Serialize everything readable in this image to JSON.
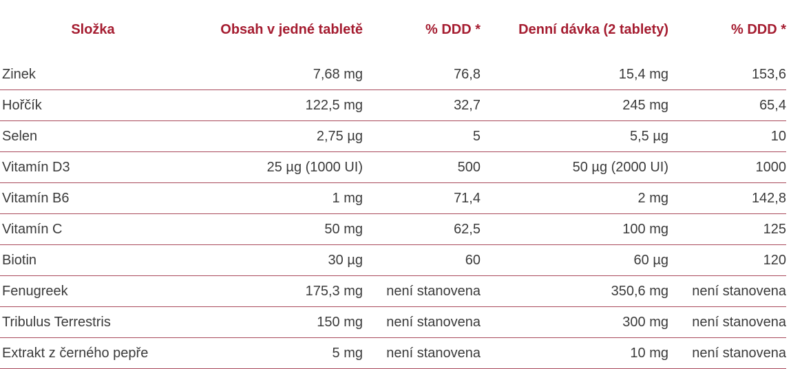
{
  "table": {
    "header": [
      "Složka",
      "Obsah v jedné tabletě",
      "% DDD *",
      "Denní dávka (2 tablety)",
      "% DDD *"
    ],
    "rows": [
      [
        "Zinek",
        "7,68 mg",
        "76,8",
        "15,4 mg",
        "153,6"
      ],
      [
        "Hořčík",
        "122,5 mg",
        "32,7",
        "245 mg",
        "65,4"
      ],
      [
        "Selen",
        "2,75 µg",
        "5",
        "5,5 µg",
        "10"
      ],
      [
        "Vitamín D3",
        "25 µg (1000 UI)",
        "500",
        "50 µg (2000 UI)",
        "1000"
      ],
      [
        "Vitamín B6",
        "1 mg",
        "71,4",
        "2 mg",
        "142,8"
      ],
      [
        "Vitamín C",
        "50 mg",
        "62,5",
        "100 mg",
        "125"
      ],
      [
        "Biotin",
        "30 µg",
        "60",
        "60 µg",
        "120"
      ],
      [
        "Fenugreek",
        "175,3 mg",
        "není stanovena",
        "350,6 mg",
        "není stanovena"
      ],
      [
        "Tribulus Terrestris",
        "150 mg",
        "není stanovena",
        "300 mg",
        "není stanovena"
      ],
      [
        "Extrakt z černého pepře",
        "5 mg",
        "není stanovena",
        "10 mg",
        "není stanovena"
      ]
    ]
  }
}
